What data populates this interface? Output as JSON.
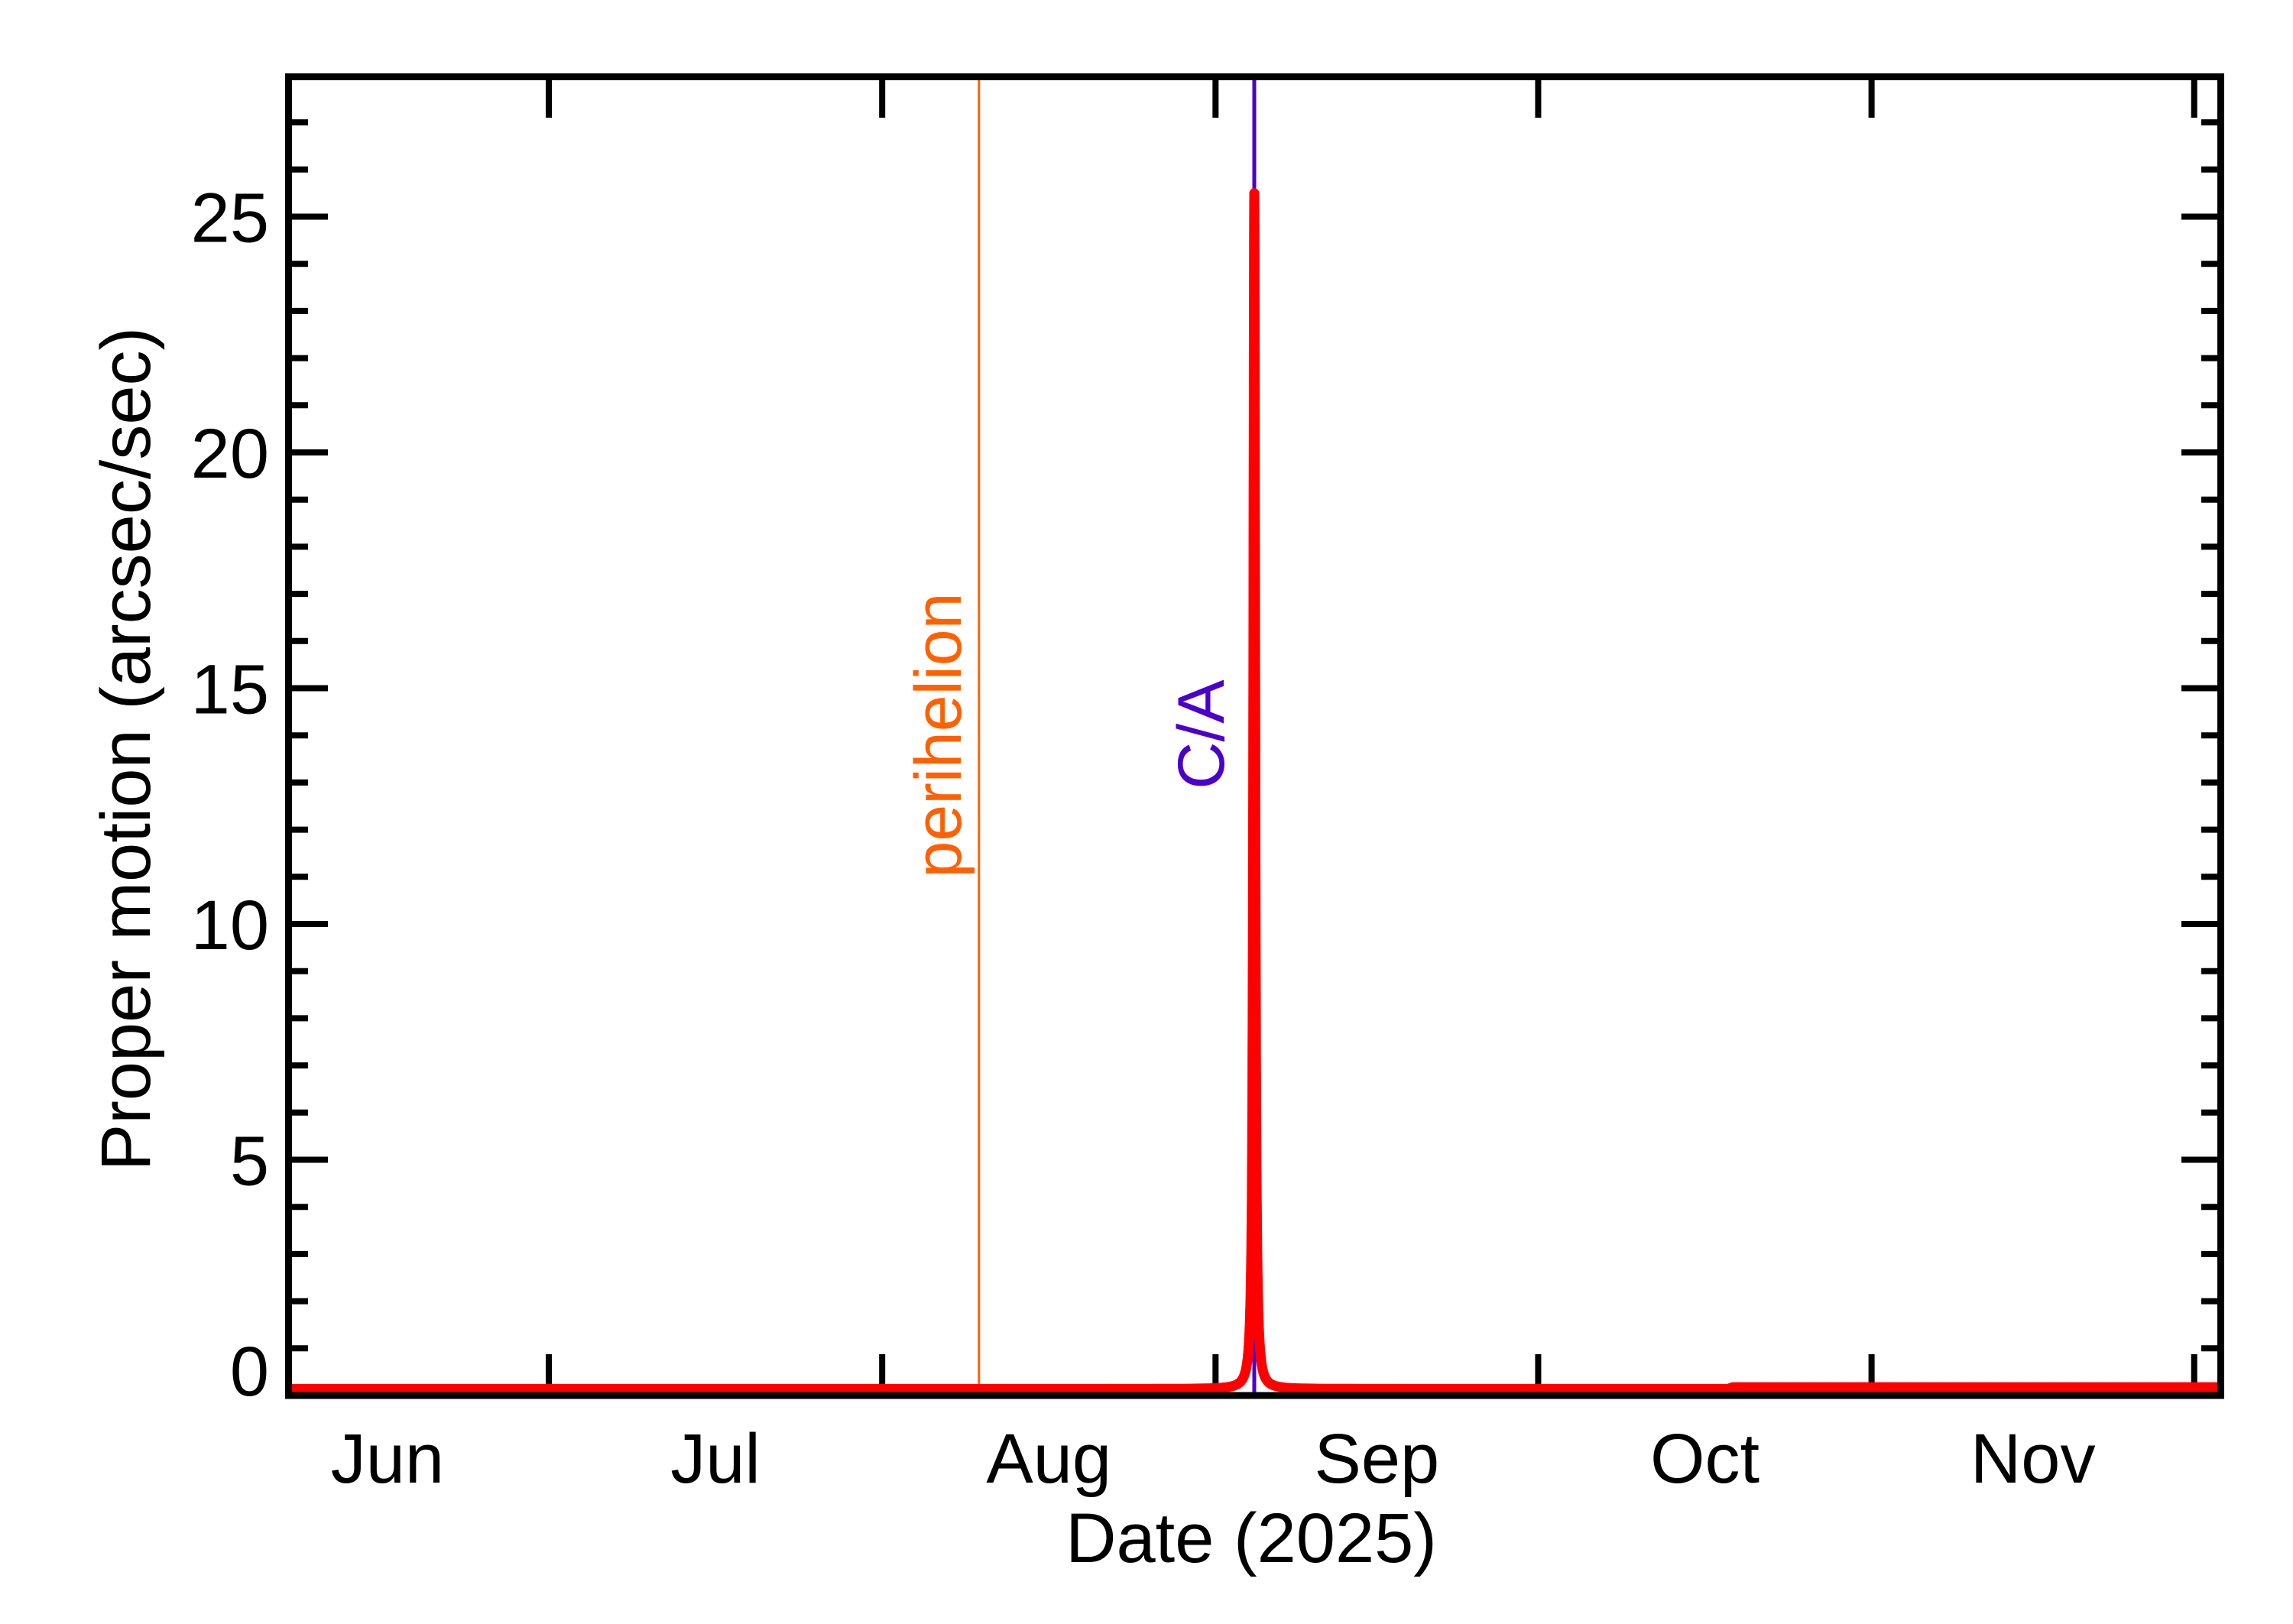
{
  "chart_data": {
    "type": "line",
    "title": "",
    "xlabel": "Date (2025)",
    "ylabel": "Proper motion (arcsec/sec)",
    "ylim": [
      0,
      28
    ],
    "xlim_days_from_jul1": [
      -24.5,
      155.8
    ],
    "x_tick_labels": [
      "Jun",
      "Jul",
      "Aug",
      "Sep",
      "Oct",
      "Nov"
    ],
    "x_tick_label_days_from_jul1": [
      -15,
      15.5,
      46.5,
      77,
      107.5,
      138
    ],
    "x_major_tick_dates": [
      "Jul 1",
      "Aug 1",
      "Sep 1",
      "Oct 1",
      "Nov 1",
      "Dec 1"
    ],
    "x_major_tick_days_from_jul1": [
      0,
      31,
      62,
      92,
      123,
      153
    ],
    "y_tick_labels": [
      "0",
      "5",
      "10",
      "15",
      "20",
      "25"
    ],
    "y_major_ticks": [
      5,
      10,
      15,
      20,
      25
    ],
    "y_minor_step": 1,
    "grid": false,
    "legend": null,
    "series": [
      {
        "name": "Proper motion",
        "color": "#ff0000",
        "model": "lorentzian-peak",
        "peak_value": 25.4,
        "peak_day_from_jul1": 65.6,
        "peak_halfwidth_days": 0.1,
        "baseline_before": 0.04,
        "baseline_after": 0.08,
        "x_days_from_jul1": [
          -24.5,
          0,
          31,
          62,
          64,
          65,
          65.3,
          65.5,
          65.6,
          65.7,
          65.9,
          66.2,
          67,
          70,
          92,
          110,
          123,
          155.8
        ],
        "values": [
          0.03,
          0.03,
          0.03,
          0.04,
          0.15,
          0.7,
          2.5,
          12.0,
          25.4,
          12.0,
          2.5,
          0.7,
          0.15,
          0.05,
          0.05,
          0.08,
          0.1,
          0.1
        ]
      }
    ],
    "annotations": [
      {
        "label": "perihelion",
        "date": "Aug 10",
        "day_from_jul1": 40.0,
        "color": "#ff6000",
        "orientation": "vertical"
      },
      {
        "label": "C/A",
        "date": "Sep 4",
        "day_from_jul1": 65.6,
        "color": "#4b00cc",
        "orientation": "vertical"
      }
    ]
  },
  "labels": {
    "xlabel": "Date (2025)",
    "ylabel": "Proper motion (arcsec/sec)",
    "perihelion": "perihelion",
    "ca": "C/A"
  },
  "colors": {
    "curve": "#ff0000",
    "perihelion": "#ff6000",
    "ca": "#4b00cc",
    "axes": "#000000",
    "background": "#ffffff"
  }
}
